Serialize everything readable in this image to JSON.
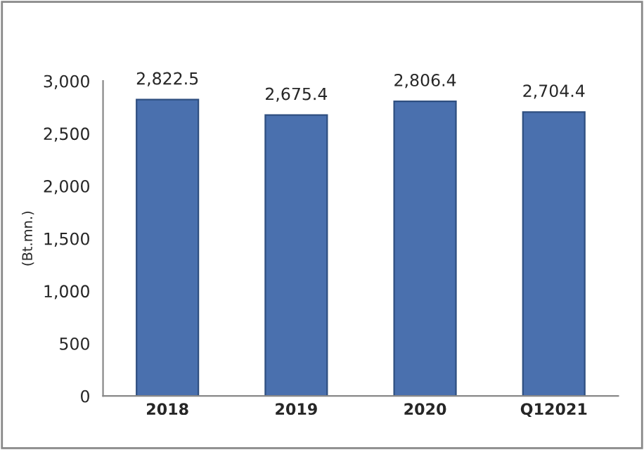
{
  "chart_data": {
    "type": "bar",
    "ylabel": "(Bt.mn.)",
    "categories": [
      "2018",
      "2019",
      "2020",
      "Q12021"
    ],
    "values": [
      2822.5,
      2675.4,
      2806.4,
      2704.4
    ],
    "value_labels": [
      "2,822.5",
      "2,675.4",
      "2,806.4",
      "2,704.4"
    ],
    "color": "#4a70ae",
    "ylim": [
      0,
      3000
    ],
    "yticks": [
      {
        "value": 0,
        "label": "0"
      },
      {
        "value": 500,
        "label": "500"
      },
      {
        "value": 1000,
        "label": "1,000"
      },
      {
        "value": 1500,
        "label": "1,500"
      },
      {
        "value": 2000,
        "label": "2,000"
      },
      {
        "value": 2500,
        "label": "2,500"
      },
      {
        "value": 3000,
        "label": "3,000"
      }
    ],
    "grid": false,
    "legend": false
  }
}
